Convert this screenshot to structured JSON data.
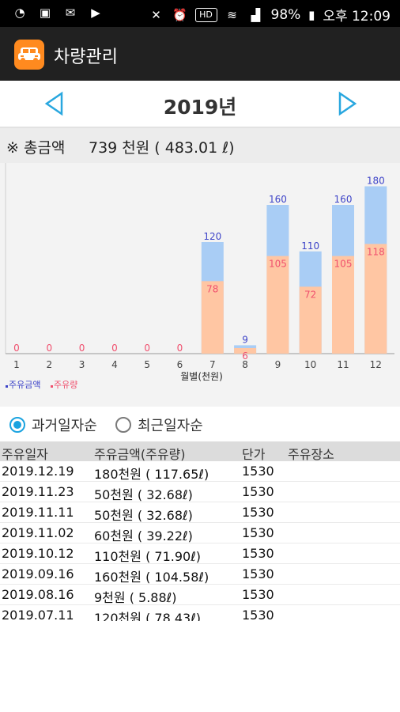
{
  "status_bar": {
    "battery": "98%",
    "time": "오후 12:09"
  },
  "app": {
    "title": "차량관리"
  },
  "year": {
    "title": "2019년"
  },
  "summary": {
    "label": "※ 총금액",
    "value": "739 천원 ( 483.01 ℓ)"
  },
  "chart_data": {
    "type": "bar",
    "categories": [
      "1",
      "2",
      "3",
      "4",
      "5",
      "6",
      "7",
      "8",
      "9",
      "10",
      "11",
      "12"
    ],
    "series": [
      {
        "name": "주유금액",
        "values": [
          0,
          0,
          0,
          0,
          0,
          0,
          120,
          9,
          160,
          110,
          160,
          180
        ],
        "color": "#a9cdf5",
        "label_color": "#3e44c8"
      },
      {
        "name": "주유량",
        "values": [
          0,
          0,
          0,
          0,
          0,
          0,
          78,
          6,
          105,
          72,
          105,
          118
        ],
        "color": "#ffc6a3",
        "label_color": "#f0506e"
      }
    ],
    "xlabel": "월별(천원)",
    "ylim": [
      0,
      200
    ],
    "legend": "bottom-left",
    "grid": false
  },
  "order": {
    "option1": "과거일자순",
    "option2": "최근일자순",
    "selected": 1
  },
  "table": {
    "headers": [
      "주유일자",
      "주유금액(주유량)",
      "단가",
      "주유장소"
    ],
    "rows": [
      [
        "2019.12.19",
        "180천원 ( 117.65ℓ)",
        "1530",
        ""
      ],
      [
        "2019.11.23",
        "50천원 ( 32.68ℓ)",
        "1530",
        ""
      ],
      [
        "2019.11.11",
        "50천원 ( 32.68ℓ)",
        "1530",
        ""
      ],
      [
        "2019.11.02",
        "60천원 ( 39.22ℓ)",
        "1530",
        ""
      ],
      [
        "2019.10.12",
        "110천원 ( 71.90ℓ)",
        "1530",
        ""
      ],
      [
        "2019.09.16",
        "160천원 ( 104.58ℓ)",
        "1530",
        ""
      ],
      [
        "2019.08.16",
        "9천원 ( 5.88ℓ)",
        "1530",
        ""
      ],
      [
        "2019.07.11",
        "120천원 ( 78.43ℓ)",
        "1530",
        ""
      ]
    ]
  },
  "colors": {
    "accent": "#1aa3e0",
    "appbar": "#212121",
    "logo": "#ff8a1f"
  }
}
